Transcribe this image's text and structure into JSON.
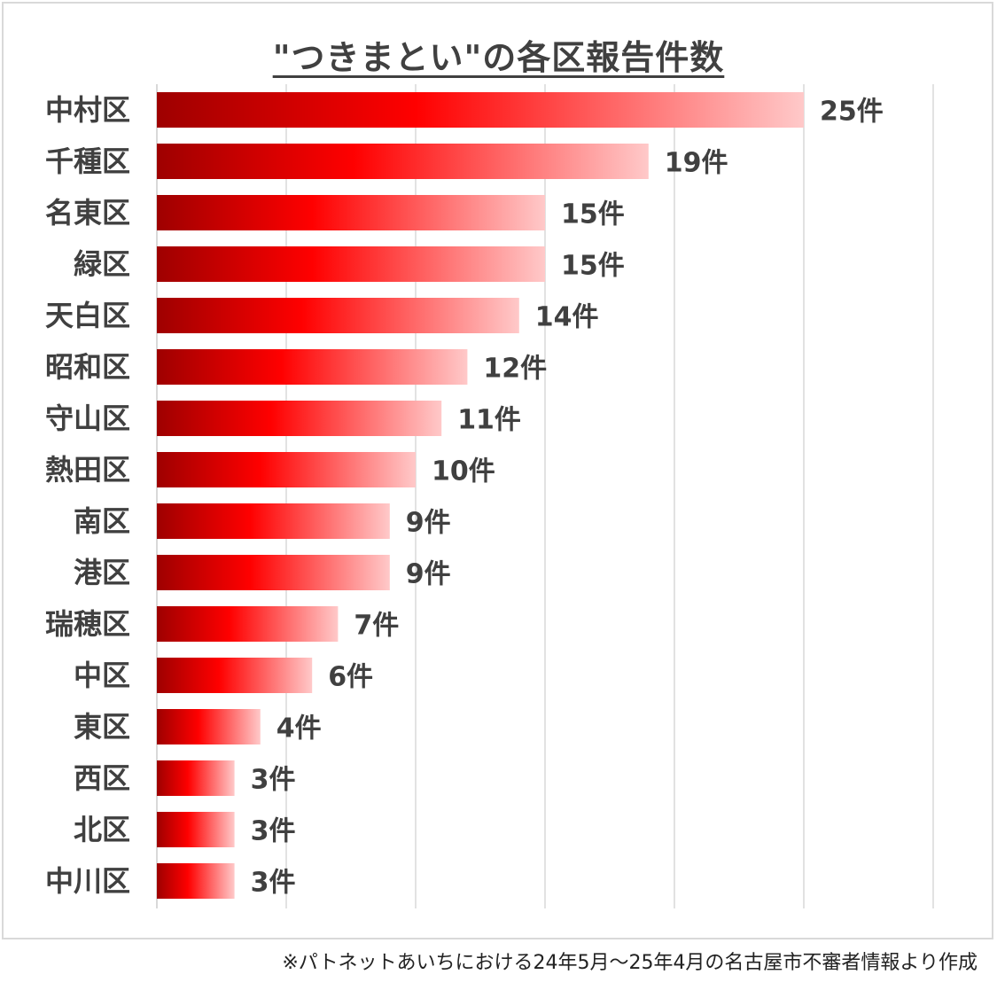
{
  "chart_data": {
    "type": "bar",
    "orientation": "horizontal",
    "title": "\"つきまとい\"の各区報告件数",
    "categories": [
      "中村区",
      "千種区",
      "名東区",
      "緑区",
      "天白区",
      "昭和区",
      "守山区",
      "熱田区",
      "南区",
      "港区",
      "瑞穂区",
      "中区",
      "東区",
      "西区",
      "北区",
      "中川区"
    ],
    "values": [
      25,
      19,
      15,
      15,
      14,
      12,
      11,
      10,
      9,
      9,
      7,
      6,
      4,
      3,
      3,
      3
    ],
    "value_labels": [
      "25件",
      "19件",
      "15件",
      "15件",
      "14件",
      "12件",
      "11件",
      "10件",
      "9件",
      "9件",
      "7件",
      "6件",
      "4件",
      "3件",
      "3件",
      "3件"
    ],
    "xlim": [
      0,
      30
    ],
    "grid": true,
    "legend": "none",
    "xlabel": "",
    "ylabel": ""
  },
  "colors": {
    "bar_dark": "#9e0000",
    "bar_mid": "#ff0000",
    "bar_light": "#ffc9c9",
    "grid": "#d9d9d9",
    "text": "#404040"
  },
  "footnote": "※パトネットあいちにおける24年5月〜25年4月の名古屋市不審者情報より作成"
}
